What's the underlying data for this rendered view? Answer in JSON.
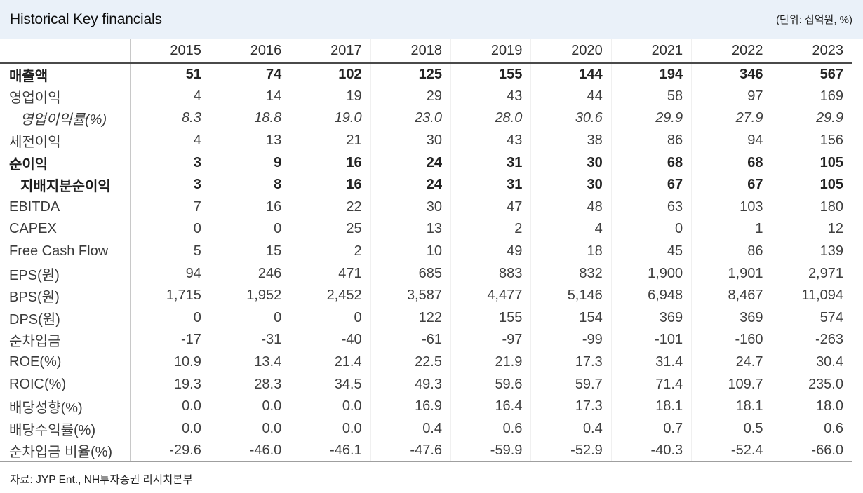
{
  "header": {
    "title": "Historical Key financials",
    "unit_note": "(단위: 십억원, %)"
  },
  "table": {
    "year_columns": [
      "2015",
      "2016",
      "2017",
      "2018",
      "2019",
      "2020",
      "2021",
      "2022",
      "2023"
    ],
    "rows": [
      {
        "label": "매출액",
        "style": "bold",
        "indent": 0,
        "divider_above": false,
        "values": [
          "51",
          "74",
          "102",
          "125",
          "155",
          "144",
          "194",
          "346",
          "567"
        ]
      },
      {
        "label": "영업이익",
        "style": "normal",
        "indent": 0,
        "divider_above": false,
        "values": [
          "4",
          "14",
          "19",
          "29",
          "43",
          "44",
          "58",
          "97",
          "169"
        ]
      },
      {
        "label": "영업이익률(%)",
        "style": "italic",
        "indent": 1,
        "divider_above": false,
        "values": [
          "8.3",
          "18.8",
          "19.0",
          "23.0",
          "28.0",
          "30.6",
          "29.9",
          "27.9",
          "29.9"
        ]
      },
      {
        "label": "세전이익",
        "style": "normal",
        "indent": 0,
        "divider_above": false,
        "values": [
          "4",
          "13",
          "21",
          "30",
          "43",
          "38",
          "86",
          "94",
          "156"
        ]
      },
      {
        "label": "순이익",
        "style": "bold",
        "indent": 0,
        "divider_above": false,
        "values": [
          "3",
          "9",
          "16",
          "24",
          "31",
          "30",
          "68",
          "68",
          "105"
        ]
      },
      {
        "label": "지배지분순이익",
        "style": "bold",
        "indent": 1,
        "divider_above": false,
        "values": [
          "3",
          "8",
          "16",
          "24",
          "31",
          "30",
          "67",
          "67",
          "105"
        ]
      },
      {
        "label": "EBITDA",
        "style": "normal",
        "indent": 0,
        "divider_above": true,
        "values": [
          "7",
          "16",
          "22",
          "30",
          "47",
          "48",
          "63",
          "103",
          "180"
        ]
      },
      {
        "label": "CAPEX",
        "style": "normal",
        "indent": 0,
        "divider_above": false,
        "values": [
          "0",
          "0",
          "25",
          "13",
          "2",
          "4",
          "0",
          "1",
          "12"
        ]
      },
      {
        "label": "Free Cash Flow",
        "style": "normal",
        "indent": 0,
        "divider_above": false,
        "values": [
          "5",
          "15",
          "2",
          "10",
          "49",
          "18",
          "45",
          "86",
          "139"
        ]
      },
      {
        "label": "EPS(원)",
        "style": "normal",
        "indent": 0,
        "divider_above": false,
        "values": [
          "94",
          "246",
          "471",
          "685",
          "883",
          "832",
          "1,900",
          "1,901",
          "2,971"
        ]
      },
      {
        "label": "BPS(원)",
        "style": "normal",
        "indent": 0,
        "divider_above": false,
        "values": [
          "1,715",
          "1,952",
          "2,452",
          "3,587",
          "4,477",
          "5,146",
          "6,948",
          "8,467",
          "11,094"
        ]
      },
      {
        "label": "DPS(원)",
        "style": "normal",
        "indent": 0,
        "divider_above": false,
        "values": [
          "0",
          "0",
          "0",
          "122",
          "155",
          "154",
          "369",
          "369",
          "574"
        ]
      },
      {
        "label": "순차입금",
        "style": "normal",
        "indent": 0,
        "divider_above": false,
        "values": [
          "-17",
          "-31",
          "-40",
          "-61",
          "-97",
          "-99",
          "-101",
          "-160",
          "-263"
        ]
      },
      {
        "label": "ROE(%)",
        "style": "normal",
        "indent": 0,
        "divider_above": true,
        "values": [
          "10.9",
          "13.4",
          "21.4",
          "22.5",
          "21.9",
          "17.3",
          "31.4",
          "24.7",
          "30.4"
        ]
      },
      {
        "label": "ROIC(%)",
        "style": "normal",
        "indent": 0,
        "divider_above": false,
        "values": [
          "19.3",
          "28.3",
          "34.5",
          "49.3",
          "59.6",
          "59.7",
          "71.4",
          "109.7",
          "235.0"
        ]
      },
      {
        "label": "배당성향(%)",
        "style": "normal",
        "indent": 0,
        "divider_above": false,
        "values": [
          "0.0",
          "0.0",
          "0.0",
          "16.9",
          "16.4",
          "17.3",
          "18.1",
          "18.1",
          "18.0"
        ]
      },
      {
        "label": "배당수익률(%)",
        "style": "normal",
        "indent": 0,
        "divider_above": false,
        "values": [
          "0.0",
          "0.0",
          "0.0",
          "0.4",
          "0.6",
          "0.4",
          "0.7",
          "0.5",
          "0.6"
        ]
      },
      {
        "label": "순차입금 비율(%)",
        "style": "normal",
        "indent": 0,
        "divider_above": false,
        "values": [
          "-29.6",
          "-46.0",
          "-46.1",
          "-47.6",
          "-59.9",
          "-52.9",
          "-40.3",
          "-52.4",
          "-66.0"
        ]
      }
    ]
  },
  "footer": {
    "source": "자료: JYP Ent., NH투자증권 리서치본부"
  },
  "colors": {
    "title_bar_bg": "#eaf1f9",
    "header_rule": "#4a4a4a",
    "section_rule": "#9f9f9f",
    "label_column_rule": "#c8c8c8",
    "faint_column_rule": "#f0f0f0",
    "text": "#3f3f3f",
    "bold_text": "#232323"
  }
}
